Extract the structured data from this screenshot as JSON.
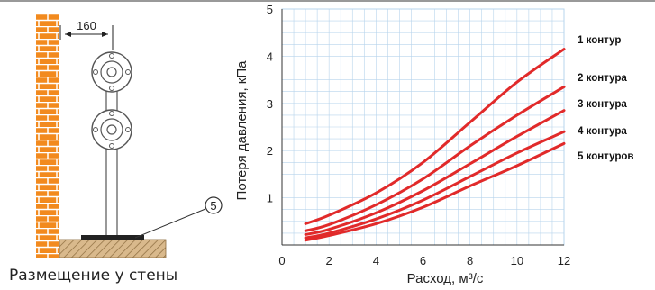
{
  "mounting": {
    "caption": "Размещение у стены",
    "dimension_label": "160",
    "callout_number": "5"
  },
  "chart_data": {
    "type": "line",
    "title": "",
    "xlabel": "Расход, м³/с",
    "ylabel": "Потеря давления, кПа",
    "xlim": [
      0,
      12
    ],
    "ylim": [
      0,
      5
    ],
    "x_ticks": [
      0,
      2,
      4,
      6,
      8,
      10,
      12
    ],
    "y_ticks": [
      1,
      2,
      3,
      4,
      5
    ],
    "grid": true,
    "grid_color": "#b7d4ec",
    "series_color": "#e12a2a",
    "series": [
      {
        "name": "1 контур",
        "x": [
          1,
          2,
          4,
          6,
          8,
          10,
          12
        ],
        "y": [
          0.45,
          0.63,
          1.1,
          1.75,
          2.6,
          3.45,
          4.15
        ]
      },
      {
        "name": "2 контура",
        "x": [
          1,
          2,
          4,
          6,
          8,
          10,
          12
        ],
        "y": [
          0.3,
          0.43,
          0.85,
          1.4,
          2.1,
          2.75,
          3.35
        ]
      },
      {
        "name": "3 контура",
        "x": [
          1,
          2,
          4,
          6,
          8,
          10,
          12
        ],
        "y": [
          0.22,
          0.33,
          0.68,
          1.15,
          1.72,
          2.3,
          2.85
        ]
      },
      {
        "name": "4 контура",
        "x": [
          1,
          2,
          4,
          6,
          8,
          10,
          12
        ],
        "y": [
          0.15,
          0.25,
          0.55,
          0.95,
          1.45,
          1.95,
          2.4
        ]
      },
      {
        "name": "5 контуров",
        "x": [
          1,
          2,
          4,
          6,
          8,
          10,
          12
        ],
        "y": [
          0.1,
          0.2,
          0.45,
          0.8,
          1.25,
          1.68,
          2.15
        ]
      }
    ]
  }
}
